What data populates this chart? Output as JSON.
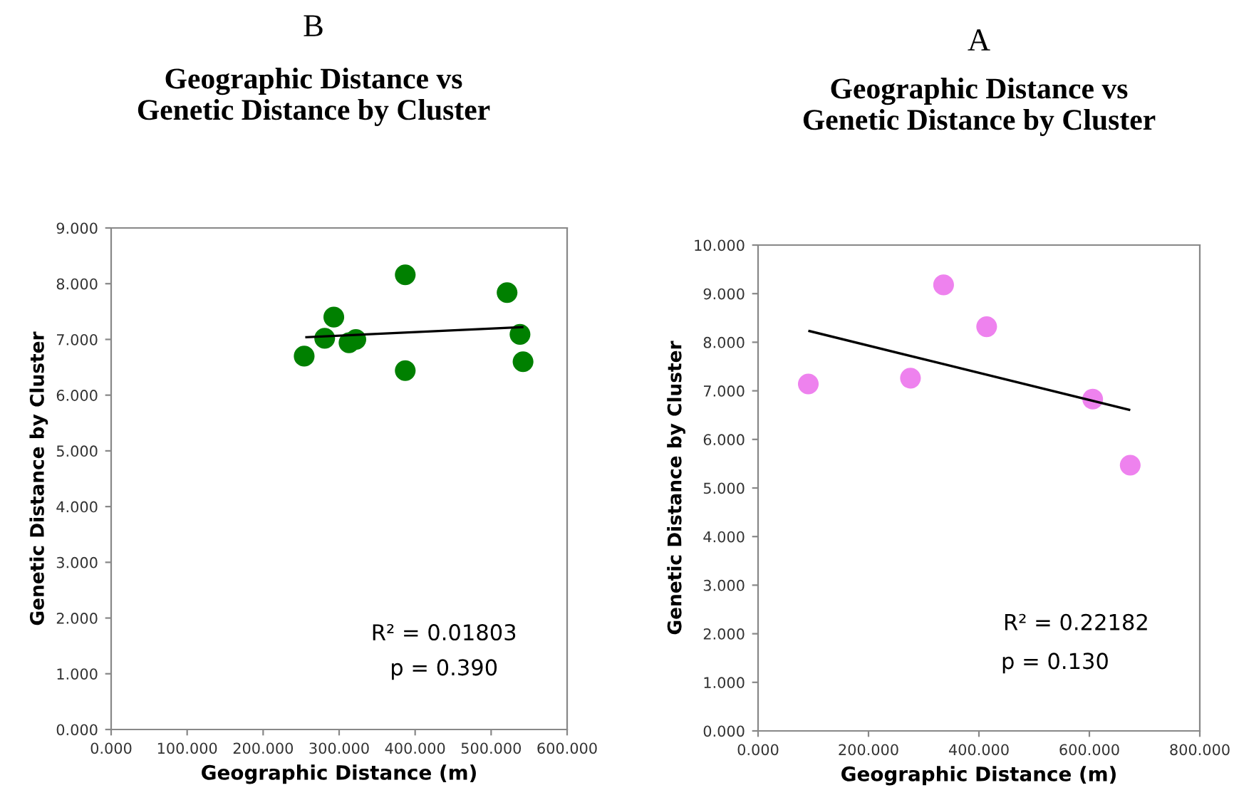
{
  "chart_data": [
    {
      "type": "scatter",
      "title": "Geographic Distance vs\nGenetic Distance by Cluster",
      "xlabel": "Geographic Distance (m)",
      "ylabel": "Genetic Distance by Cluster",
      "annotations": [
        "B",
        "R² = 0.01803",
        "p = 0.390"
      ],
      "series": [
        {
          "color": "#008000",
          "marker": "circle",
          "x": [
            254,
            281,
            293,
            313,
            322,
            387,
            387,
            521,
            538,
            542
          ],
          "values": [
            6.7,
            7.02,
            7.4,
            6.94,
            7.0,
            8.16,
            6.44,
            7.84,
            7.09,
            6.6
          ]
        },
        {
          "type": "line",
          "color": "#000000",
          "line_style": "solid",
          "marker": "none",
          "x": [
            257,
            541
          ],
          "values": [
            7.04,
            7.22
          ]
        }
      ],
      "xlim": [
        0,
        600
      ],
      "xticks": [
        {
          "value": 0,
          "label": "0.000"
        },
        {
          "value": 100,
          "label": "100.000"
        },
        {
          "value": 200,
          "label": "200.000"
        },
        {
          "value": 300,
          "label": "300.000"
        },
        {
          "value": 400,
          "label": "400.000"
        },
        {
          "value": 500,
          "label": "500.000"
        },
        {
          "value": 600,
          "label": "600.000"
        }
      ],
      "ylim": [
        0,
        9
      ],
      "yticks": [
        {
          "value": 0,
          "label": "0.000"
        },
        {
          "value": 1,
          "label": "1.000"
        },
        {
          "value": 2,
          "label": "2.000"
        },
        {
          "value": 3,
          "label": "3.000"
        },
        {
          "value": 4,
          "label": "4.000"
        },
        {
          "value": 5,
          "label": "5.000"
        },
        {
          "value": 6,
          "label": "6.000"
        },
        {
          "value": 7,
          "label": "7.000"
        },
        {
          "value": 8,
          "label": "8.000"
        },
        {
          "value": 9,
          "label": "9.000"
        }
      ],
      "grid": false,
      "legend": false
    },
    {
      "type": "scatter",
      "title": "Geographic Distance vs\nGenetic Distance by Cluster",
      "xlabel": "Geographic Distance (m)",
      "ylabel": "Genetic Distance by Cluster",
      "annotations": [
        "A",
        "R² = 0.22182",
        "p = 0.130"
      ],
      "series": [
        {
          "color": "#ee82ee",
          "marker": "circle",
          "x": [
            91,
            276,
            336,
            414,
            606,
            674
          ],
          "values": [
            7.14,
            7.26,
            9.18,
            8.32,
            6.83,
            5.47
          ]
        },
        {
          "type": "line",
          "color": "#000000",
          "line_style": "solid",
          "marker": "none",
          "x": [
            93,
            672
          ],
          "values": [
            8.23,
            6.61
          ]
        }
      ],
      "xlim": [
        0,
        800
      ],
      "xticks": [
        {
          "value": 0,
          "label": "0.000"
        },
        {
          "value": 200,
          "label": "200.000"
        },
        {
          "value": 400,
          "label": "400.000"
        },
        {
          "value": 600,
          "label": "600.000"
        },
        {
          "value": 800,
          "label": "800.000"
        }
      ],
      "ylim": [
        0,
        10
      ],
      "yticks": [
        {
          "value": 0,
          "label": "0.000"
        },
        {
          "value": 1,
          "label": "1.000"
        },
        {
          "value": 2,
          "label": "2.000"
        },
        {
          "value": 3,
          "label": "3.000"
        },
        {
          "value": 4,
          "label": "4.000"
        },
        {
          "value": 5,
          "label": "5.000"
        },
        {
          "value": 6,
          "label": "6.000"
        },
        {
          "value": 7,
          "label": "7.000"
        },
        {
          "value": 8,
          "label": "8.000"
        },
        {
          "value": 9,
          "label": "9.000"
        },
        {
          "value": 10,
          "label": "10.000"
        }
      ],
      "grid": false,
      "legend": false
    }
  ]
}
